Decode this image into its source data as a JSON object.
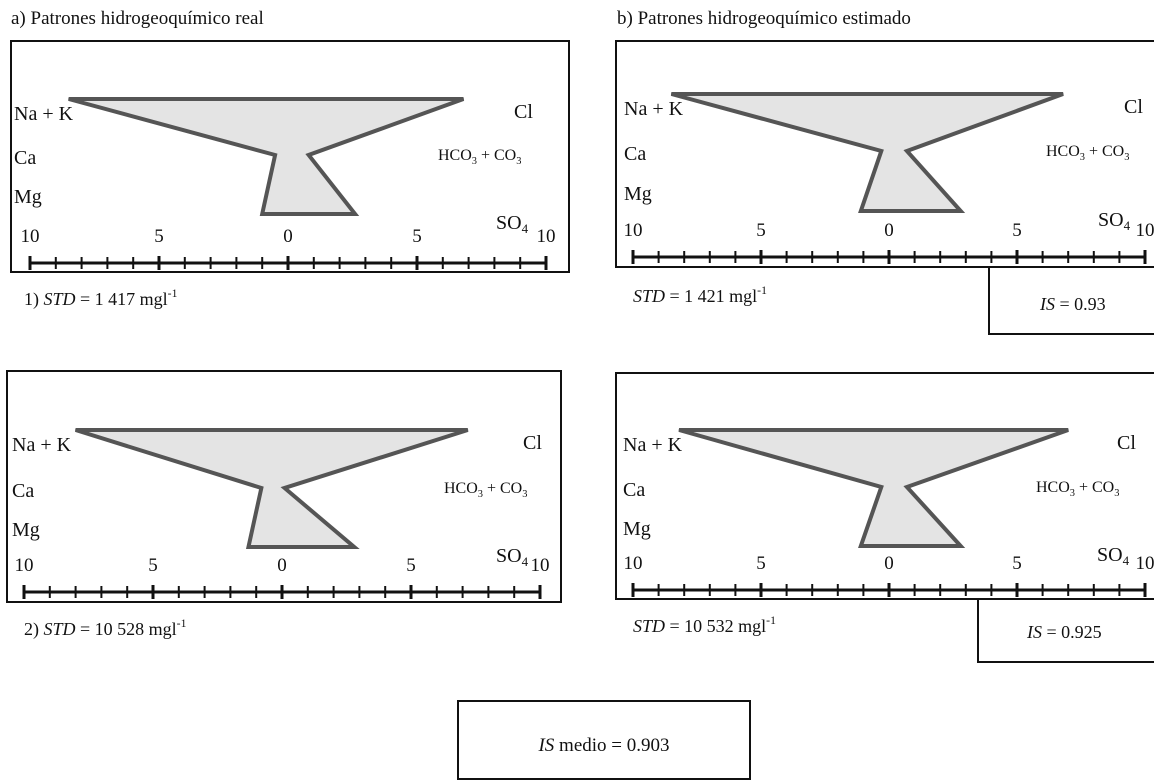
{
  "titles": {
    "real": "a) Patrones hidrogeoquímico real",
    "estimated": "b) Patrones hidrogeoquímico estimado"
  },
  "labels": {
    "nak": "Na + K",
    "ca": "Ca",
    "mg": "Mg",
    "cl": "Cl",
    "hco3_a": "HCO",
    "hco3_sub": "3",
    "hco3_b": " + CO",
    "co3_sub": "3",
    "so4": "SO",
    "so4_sub": "4"
  },
  "axis_ticks": [
    "10",
    "5",
    "0",
    "5",
    "10"
  ],
  "summary": {
    "is_italic": "IS",
    "text": " medio = 0.903"
  },
  "chart_data": [
    {
      "type": "stiff",
      "id": "1-real",
      "std_prefix": "1) ",
      "std_var": "STD",
      "std_value": " = 1 417 mgl",
      "std_sup": "-1",
      "cations": {
        "Na + K": -8.5,
        "Ca": -0.5,
        "Mg": -1.0
      },
      "anions": {
        "Cl": 6.8,
        "HCO3 + CO3": 0.8,
        "SO4": 2.6
      },
      "xlim": [
        -10,
        10
      ]
    },
    {
      "type": "stiff",
      "id": "1-estimado",
      "std_prefix": "",
      "std_var": "STD",
      "std_value": " =  1 421 mgl",
      "std_sup": "-1",
      "is_var": "IS",
      "is_value": " = 0.93",
      "cations": {
        "Na + K": -8.5,
        "Ca": -0.3,
        "Mg": -1.1
      },
      "anions": {
        "Cl": 6.8,
        "HCO3 + CO3": 0.7,
        "SO4": 2.8
      },
      "xlim": [
        -10,
        10
      ]
    },
    {
      "type": "stiff",
      "id": "2-real",
      "std_prefix": "2) ",
      "std_var": "STD",
      "std_value": " = 10 528 mgl",
      "std_sup": "-1",
      "cations": {
        "Na + K": -8.0,
        "Ca": -0.8,
        "Mg": -1.3
      },
      "anions": {
        "Cl": 7.2,
        "HCO3 + CO3": 0.1,
        "SO4": 2.8
      },
      "xlim": [
        -10,
        10
      ]
    },
    {
      "type": "stiff",
      "id": "2-estimado",
      "std_prefix": "",
      "std_var": "STD",
      "std_value": " =  10 532 mgl",
      "std_sup": "-1",
      "is_var": "IS",
      "is_value": " = 0.925",
      "cations": {
        "Na + K": -8.2,
        "Ca": -0.3,
        "Mg": -1.1
      },
      "anions": {
        "Cl": 7.0,
        "HCO3 + CO3": 0.7,
        "SO4": 2.8
      },
      "xlim": [
        -10,
        10
      ]
    }
  ]
}
